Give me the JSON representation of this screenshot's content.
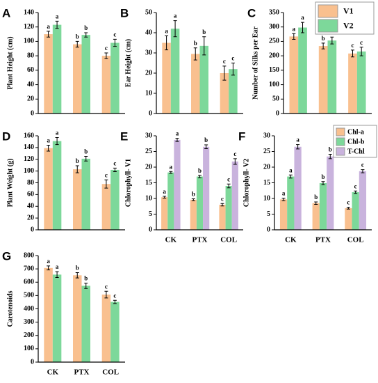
{
  "chart_data": [
    {
      "type": "bar",
      "panel": "A",
      "ylabel": "Plant Height (cm)",
      "categories": [
        null,
        null,
        null
      ],
      "ylim": [
        0,
        140
      ],
      "yticks": [
        0,
        20,
        40,
        60,
        80,
        100,
        120,
        140
      ],
      "series": [
        {
          "color": "#f9c08f",
          "values": [
            110,
            96,
            80
          ],
          "errors": [
            4,
            4,
            4
          ],
          "labels": [
            "a",
            "b",
            "c"
          ]
        },
        {
          "color": "#7dd89a",
          "values": [
            123,
            109,
            98
          ],
          "errors": [
            5,
            3,
            5
          ],
          "labels": [
            "a",
            "b",
            "c"
          ]
        }
      ]
    },
    {
      "type": "bar",
      "panel": "B",
      "ylabel": "Ear Height (cm)",
      "categories": [
        null,
        null,
        null
      ],
      "ylim": [
        0,
        50
      ],
      "yticks": [
        0,
        10,
        20,
        30,
        40,
        50
      ],
      "series": [
        {
          "color": "#f9c08f",
          "values": [
            35,
            29.5,
            20
          ],
          "errors": [
            3.5,
            3,
            3.5
          ],
          "labels": [
            "a",
            "b",
            "c"
          ]
        },
        {
          "color": "#7dd89a",
          "values": [
            42,
            33.5,
            22
          ],
          "errors": [
            4,
            4.5,
            3
          ],
          "labels": [
            "a",
            "b",
            "c"
          ]
        }
      ]
    },
    {
      "type": "bar",
      "panel": "C",
      "ylabel": "Number of Silks per Ear",
      "categories": [
        null,
        null,
        null
      ],
      "ylim": [
        0,
        350
      ],
      "yticks": [
        0,
        50,
        100,
        150,
        200,
        250,
        300,
        350
      ],
      "legend": "upper right",
      "series": [
        {
          "name": "V1",
          "color": "#f9c08f",
          "values": [
            267,
            234,
            208
          ],
          "errors": [
            10,
            10,
            12
          ],
          "labels": [
            "a",
            "b",
            "c"
          ]
        },
        {
          "name": "V2",
          "color": "#7dd89a",
          "values": [
            298,
            253,
            215
          ],
          "errors": [
            18,
            12,
            15
          ],
          "labels": [
            "a",
            "b",
            "c"
          ]
        }
      ]
    },
    {
      "type": "bar",
      "panel": "D",
      "ylabel": "Plant Weight (g)",
      "categories": [
        null,
        null,
        null
      ],
      "ylim": [
        0,
        160
      ],
      "yticks": [
        0,
        20,
        40,
        60,
        80,
        100,
        120,
        140,
        160
      ],
      "series": [
        {
          "color": "#f9c08f",
          "values": [
            139,
            103,
            78
          ],
          "errors": [
            5,
            6,
            7
          ],
          "labels": [
            "a",
            "b",
            "c"
          ]
        },
        {
          "color": "#7dd89a",
          "values": [
            151,
            121,
            102
          ],
          "errors": [
            6,
            4,
            3
          ],
          "labels": [
            "a",
            "b",
            "c"
          ]
        }
      ]
    },
    {
      "type": "bar",
      "panel": "E",
      "ylabel": "Chlorophyll- V1",
      "categories": [
        "CK",
        "PTX",
        "COL"
      ],
      "ylim": [
        0,
        30
      ],
      "yticks": [
        0,
        5,
        10,
        15,
        20,
        25,
        30
      ],
      "series": [
        {
          "color": "#f9c08f",
          "values": [
            10.4,
            9.6,
            8.0
          ],
          "errors": [
            0.3,
            0.3,
            0.4
          ],
          "labels": [
            "a",
            "b",
            "c"
          ]
        },
        {
          "color": "#7dd89a",
          "values": [
            18.3,
            17.0,
            14.0
          ],
          "errors": [
            0.3,
            0.4,
            0.6
          ],
          "labels": [
            "a",
            "b",
            "c"
          ]
        },
        {
          "color": "#c9b3dd",
          "values": [
            28.7,
            26.5,
            21.8
          ],
          "errors": [
            0.5,
            0.6,
            0.9
          ],
          "labels": [
            "a",
            "b",
            "c"
          ]
        }
      ]
    },
    {
      "type": "bar",
      "panel": "F",
      "ylabel": "Chlorophyll- V2",
      "categories": [
        "CK",
        "PTX",
        "COL"
      ],
      "ylim": [
        0,
        30
      ],
      "yticks": [
        0,
        5,
        10,
        15,
        20,
        25,
        30
      ],
      "legend": "upper right",
      "series": [
        {
          "name": "Chl-a",
          "color": "#f9c08f",
          "values": [
            9.7,
            8.5,
            6.9
          ],
          "errors": [
            0.4,
            0.4,
            0.3
          ],
          "labels": [
            "a",
            "b",
            "c"
          ]
        },
        {
          "name": "Chl-b",
          "color": "#7dd89a",
          "values": [
            17.0,
            14.9,
            12.0
          ],
          "errors": [
            0.5,
            0.5,
            0.4
          ],
          "labels": [
            "a",
            "b",
            "c"
          ]
        },
        {
          "name": "T-Chl",
          "color": "#c9b3dd",
          "values": [
            26.5,
            23.4,
            18.7
          ],
          "errors": [
            0.7,
            0.7,
            0.5
          ],
          "labels": [
            "a",
            "b",
            "c"
          ]
        }
      ]
    },
    {
      "type": "bar",
      "panel": "G",
      "ylabel": "Carotenoids",
      "categories": [
        "CK",
        "PTX",
        "COL"
      ],
      "ylim": [
        0,
        800
      ],
      "yticks": [
        0,
        100,
        200,
        300,
        400,
        500,
        600,
        700,
        800
      ],
      "series": [
        {
          "color": "#f9c08f",
          "values": [
            707,
            652,
            507
          ],
          "errors": [
            15,
            20,
            25
          ],
          "labels": [
            "a",
            "b",
            "c"
          ]
        },
        {
          "color": "#7dd89a",
          "values": [
            657,
            573,
            452
          ],
          "errors": [
            22,
            20,
            12
          ],
          "labels": [
            "a",
            "b",
            "c"
          ]
        }
      ]
    }
  ]
}
